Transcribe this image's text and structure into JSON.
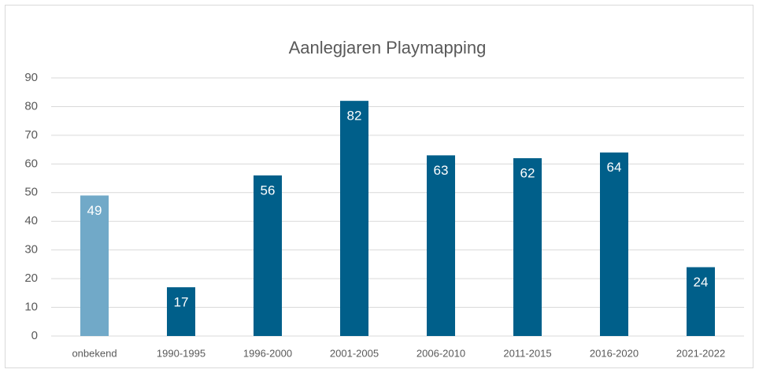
{
  "chart_data": {
    "type": "bar",
    "title": "Aanlegjaren Playmapping",
    "categories": [
      "onbekend",
      "1990-1995",
      "1996-2000",
      "2001-2005",
      "2006-2010",
      "2011-2015",
      "2016-2020",
      "2021-2022"
    ],
    "values": [
      49,
      17,
      56,
      82,
      63,
      62,
      64,
      24
    ],
    "colors": [
      "#71a9c8",
      "#005f8a",
      "#005f8a",
      "#005f8a",
      "#005f8a",
      "#005f8a",
      "#005f8a",
      "#005f8a"
    ],
    "label_color": "#ffffff",
    "ylim": [
      0,
      90
    ],
    "yticks": [
      0,
      10,
      20,
      30,
      40,
      50,
      60,
      70,
      80,
      90
    ],
    "grid": true
  }
}
